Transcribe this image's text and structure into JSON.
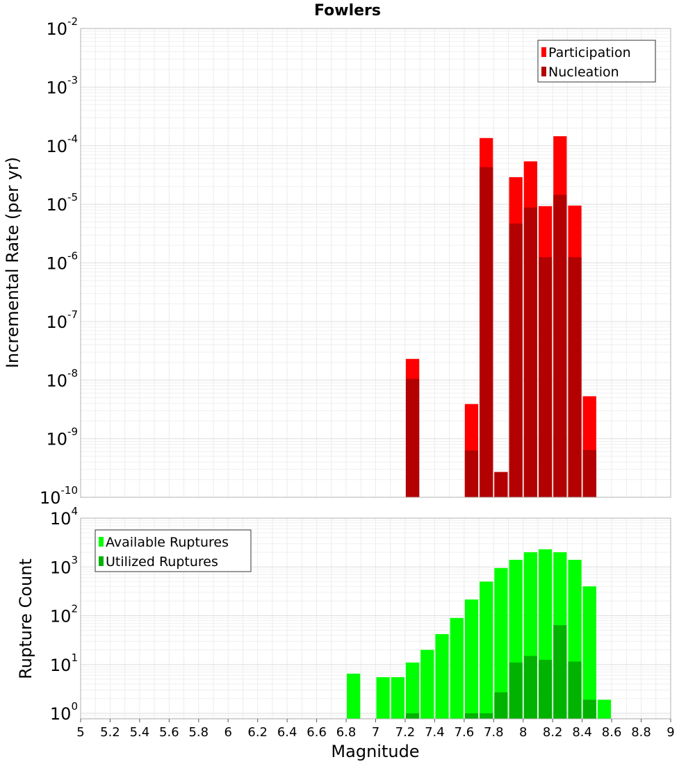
{
  "chart_data": [
    {
      "type": "bar",
      "title": "Fowlers",
      "ylabel": "Incremental Rate (per yr)",
      "xlabel": "",
      "y_scale": "log",
      "xlim": [
        5,
        9
      ],
      "ylim": [
        1e-10,
        0.01
      ],
      "y_ticks": [
        {
          "base": "10",
          "exp": "-2"
        },
        {
          "base": "10",
          "exp": "-3"
        },
        {
          "base": "10",
          "exp": "-4"
        },
        {
          "base": "10",
          "exp": "-5"
        },
        {
          "base": "10",
          "exp": "-6"
        },
        {
          "base": "10",
          "exp": "-7"
        },
        {
          "base": "10",
          "exp": "-8"
        },
        {
          "base": "10",
          "exp": "-9"
        },
        {
          "base": "10",
          "exp": "-10"
        }
      ],
      "grid": true,
      "legend_position": "top-right",
      "series": [
        {
          "name": "Participation",
          "color": "#ff0000",
          "points": [
            {
              "x": 7.25,
              "y": 2.3e-08
            },
            {
              "x": 7.65,
              "y": 3.9e-09
            },
            {
              "x": 7.75,
              "y": 0.000135
            },
            {
              "x": 7.85,
              "y": 2.7e-10
            },
            {
              "x": 7.95,
              "y": 2.9e-05
            },
            {
              "x": 8.05,
              "y": 5.4e-05
            },
            {
              "x": 8.15,
              "y": 9.3e-06
            },
            {
              "x": 8.25,
              "y": 0.000145
            },
            {
              "x": 8.35,
              "y": 9.5e-06
            },
            {
              "x": 8.45,
              "y": 5.3e-09
            }
          ]
        },
        {
          "name": "Nucleation",
          "color": "#b30000",
          "points": [
            {
              "x": 7.25,
              "y": 1.05e-08
            },
            {
              "x": 7.65,
              "y": 6.3e-10
            },
            {
              "x": 7.75,
              "y": 4.3e-05
            },
            {
              "x": 7.85,
              "y": 2.7e-10
            },
            {
              "x": 7.95,
              "y": 4.7e-06
            },
            {
              "x": 8.05,
              "y": 8.8e-06
            },
            {
              "x": 8.15,
              "y": 1.25e-06
            },
            {
              "x": 8.25,
              "y": 1.45e-05
            },
            {
              "x": 8.35,
              "y": 1.25e-06
            },
            {
              "x": 8.45,
              "y": 6.4e-10
            }
          ]
        }
      ]
    },
    {
      "type": "bar",
      "title": "",
      "ylabel": "Rupture Count",
      "xlabel": "Magnitude",
      "y_scale": "log",
      "xlim": [
        5,
        9
      ],
      "ylim": [
        0.77,
        10000
      ],
      "y_ticks": [
        {
          "base": "10",
          "exp": "4",
          "value": 10000
        },
        {
          "base": "10",
          "exp": "3",
          "value": 1000
        },
        {
          "base": "10",
          "exp": "2",
          "value": 100
        },
        {
          "base": "10",
          "exp": "1",
          "value": 10
        },
        {
          "base": "10",
          "exp": "0",
          "value": 1
        }
      ],
      "x_ticks": [
        "5",
        "5.2",
        "5.4",
        "5.6",
        "5.8",
        "6",
        "6.2",
        "6.4",
        "6.6",
        "6.8",
        "7",
        "7.2",
        "7.4",
        "7.6",
        "7.8",
        "8",
        "8.2",
        "8.4",
        "8.6",
        "8.8",
        "9"
      ],
      "grid": true,
      "legend_position": "top-left",
      "series": [
        {
          "name": "Available Ruptures",
          "color": "#00ff00",
          "points": [
            {
              "x": 6.85,
              "y": 6.5
            },
            {
              "x": 7.05,
              "y": 5.5
            },
            {
              "x": 7.15,
              "y": 5.5
            },
            {
              "x": 7.25,
              "y": 11
            },
            {
              "x": 7.35,
              "y": 20
            },
            {
              "x": 7.45,
              "y": 42
            },
            {
              "x": 7.55,
              "y": 90
            },
            {
              "x": 7.65,
              "y": 215
            },
            {
              "x": 7.75,
              "y": 500
            },
            {
              "x": 7.85,
              "y": 950
            },
            {
              "x": 7.95,
              "y": 1400
            },
            {
              "x": 8.05,
              "y": 2000
            },
            {
              "x": 8.15,
              "y": 2300
            },
            {
              "x": 8.25,
              "y": 2000
            },
            {
              "x": 8.35,
              "y": 1400
            },
            {
              "x": 8.45,
              "y": 400
            },
            {
              "x": 8.55,
              "y": 1.9
            }
          ]
        },
        {
          "name": "Utilized Ruptures",
          "color": "#00b300",
          "points": [
            {
              "x": 7.25,
              "y": 1
            },
            {
              "x": 7.65,
              "y": 1
            },
            {
              "x": 7.75,
              "y": 1
            },
            {
              "x": 7.85,
              "y": 2.7
            },
            {
              "x": 7.95,
              "y": 11
            },
            {
              "x": 8.05,
              "y": 15
            },
            {
              "x": 8.15,
              "y": 12.5
            },
            {
              "x": 8.25,
              "y": 64
            },
            {
              "x": 8.35,
              "y": 11.5
            },
            {
              "x": 8.45,
              "y": 1.9
            }
          ]
        }
      ]
    }
  ]
}
